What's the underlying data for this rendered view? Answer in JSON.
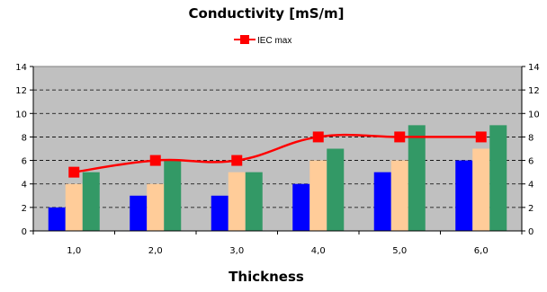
{
  "chart_data": {
    "type": "bar",
    "title": "Conductivity [mS/m]",
    "xlabel": "Thickness",
    "ylabel": "",
    "categories": [
      "1,0",
      "2,0",
      "3,0",
      "4,0",
      "5,0",
      "6,0"
    ],
    "ylim": [
      0,
      14
    ],
    "yticks": [
      "0",
      "2",
      "4",
      "6",
      "8",
      "10",
      "12",
      "14"
    ],
    "y2ticks": [
      "0",
      "2",
      "4",
      "6",
      "8",
      "10",
      "12",
      "14"
    ],
    "grid": true,
    "legend_position": "top-center",
    "plot_background": "#c0c0c0",
    "series": [
      {
        "values": [
          2,
          3,
          3,
          4,
          5,
          6
        ],
        "color": "#0000ff"
      },
      {
        "values": [
          4,
          4,
          5,
          6,
          6,
          7
        ],
        "color": "#ffcc99"
      },
      {
        "values": [
          5,
          6,
          5,
          7,
          9,
          9
        ],
        "color": "#339966"
      }
    ],
    "line_series": [
      {
        "name": "IEC max",
        "values": [
          5,
          6,
          6,
          8,
          8,
          8
        ],
        "color": "#ff0000",
        "marker": "square",
        "smooth": true
      }
    ]
  }
}
